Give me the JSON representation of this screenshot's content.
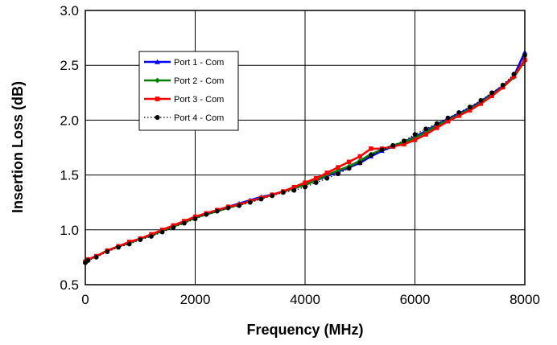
{
  "chart_data": {
    "type": "line",
    "title": "",
    "xlabel": "Frequency (MHz)",
    "ylabel": "Insertion Loss (dB)",
    "xlim": [
      0,
      8000
    ],
    "ylim": [
      0.5,
      3.0
    ],
    "xticks": [
      0,
      2000,
      4000,
      6000,
      8000
    ],
    "yticks": [
      0.5,
      1.0,
      1.5,
      2.0,
      2.5,
      3.0
    ],
    "xtick_labels": [
      "0",
      "2000",
      "4000",
      "6000",
      "8000"
    ],
    "ytick_labels": [
      "0.5",
      "1.0",
      "1.5",
      "2.0",
      "2.5",
      "3.0"
    ],
    "grid": true,
    "legend_position": "upper-left",
    "series": [
      {
        "name": "Port 1 - Com",
        "color": "#0000ff",
        "marker": "triangle",
        "line_style": "solid",
        "x": [
          0,
          50,
          200,
          400,
          600,
          800,
          1000,
          1200,
          1400,
          1600,
          1800,
          2000,
          2200,
          2400,
          2600,
          2800,
          3000,
          3200,
          3400,
          3600,
          3800,
          4000,
          4200,
          4400,
          4600,
          4800,
          5000,
          5200,
          5400,
          5600,
          5800,
          6000,
          6200,
          6400,
          6600,
          6800,
          7000,
          7200,
          7400,
          7600,
          7800,
          8000
        ],
        "values": [
          0.71,
          0.73,
          0.76,
          0.81,
          0.85,
          0.88,
          0.92,
          0.95,
          0.99,
          1.03,
          1.07,
          1.11,
          1.15,
          1.18,
          1.21,
          1.24,
          1.27,
          1.3,
          1.32,
          1.35,
          1.38,
          1.41,
          1.45,
          1.49,
          1.53,
          1.57,
          1.61,
          1.67,
          1.72,
          1.76,
          1.8,
          1.85,
          1.9,
          1.96,
          2.01,
          2.06,
          2.11,
          2.17,
          2.24,
          2.31,
          2.4,
          2.62
        ]
      },
      {
        "name": "Port 2 - Com",
        "color": "#008000",
        "marker": "diamond",
        "line_style": "solid",
        "x": [
          0,
          50,
          200,
          400,
          600,
          800,
          1000,
          1200,
          1400,
          1600,
          1800,
          2000,
          2200,
          2400,
          2600,
          2800,
          3000,
          3200,
          3400,
          3600,
          3800,
          4000,
          4200,
          4400,
          4600,
          4800,
          5000,
          5200,
          5400,
          5600,
          5800,
          6000,
          6200,
          6400,
          6600,
          6800,
          7000,
          7200,
          7400,
          7600,
          7800,
          8000
        ],
        "values": [
          0.71,
          0.73,
          0.76,
          0.81,
          0.85,
          0.88,
          0.92,
          0.95,
          0.99,
          1.03,
          1.07,
          1.11,
          1.14,
          1.17,
          1.2,
          1.23,
          1.26,
          1.29,
          1.32,
          1.35,
          1.38,
          1.41,
          1.45,
          1.5,
          1.54,
          1.58,
          1.63,
          1.69,
          1.73,
          1.77,
          1.8,
          1.84,
          1.89,
          1.95,
          2.0,
          2.05,
          2.1,
          2.16,
          2.23,
          2.3,
          2.39,
          2.54
        ]
      },
      {
        "name": "Port 3 - Com",
        "color": "#ff0000",
        "marker": "square",
        "line_style": "solid",
        "x": [
          0,
          50,
          200,
          400,
          600,
          800,
          1000,
          1200,
          1400,
          1600,
          1800,
          2000,
          2200,
          2400,
          2600,
          2800,
          3000,
          3200,
          3400,
          3600,
          3800,
          4000,
          4200,
          4400,
          4600,
          4800,
          5000,
          5200,
          5400,
          5600,
          5800,
          6000,
          6200,
          6400,
          6600,
          6800,
          7000,
          7200,
          7400,
          7600,
          7800,
          8000
        ],
        "values": [
          0.71,
          0.73,
          0.76,
          0.81,
          0.85,
          0.89,
          0.92,
          0.96,
          1.0,
          1.04,
          1.08,
          1.12,
          1.15,
          1.18,
          1.21,
          1.23,
          1.26,
          1.29,
          1.32,
          1.35,
          1.39,
          1.43,
          1.47,
          1.52,
          1.57,
          1.62,
          1.67,
          1.74,
          1.74,
          1.76,
          1.78,
          1.82,
          1.87,
          1.93,
          1.99,
          2.04,
          2.09,
          2.15,
          2.22,
          2.3,
          2.4,
          2.55
        ]
      },
      {
        "name": "Port 4 - Com",
        "color": "#000000",
        "marker": "circle",
        "line_style": "dotted",
        "x": [
          0,
          50,
          200,
          400,
          600,
          800,
          1000,
          1200,
          1400,
          1600,
          1800,
          2000,
          2200,
          2400,
          2600,
          2800,
          3000,
          3200,
          3400,
          3600,
          3800,
          4000,
          4200,
          4400,
          4600,
          4800,
          5000,
          5200,
          5400,
          5600,
          5800,
          6000,
          6200,
          6400,
          6600,
          6800,
          7000,
          7200,
          7400,
          7600,
          7800,
          8000
        ],
        "values": [
          0.7,
          0.72,
          0.75,
          0.8,
          0.84,
          0.87,
          0.91,
          0.94,
          0.98,
          1.02,
          1.06,
          1.1,
          1.14,
          1.17,
          1.2,
          1.22,
          1.25,
          1.28,
          1.31,
          1.34,
          1.36,
          1.39,
          1.43,
          1.47,
          1.51,
          1.56,
          1.61,
          1.68,
          1.73,
          1.77,
          1.81,
          1.87,
          1.92,
          1.97,
          2.02,
          2.07,
          2.12,
          2.18,
          2.25,
          2.32,
          2.42,
          2.59
        ]
      }
    ]
  }
}
